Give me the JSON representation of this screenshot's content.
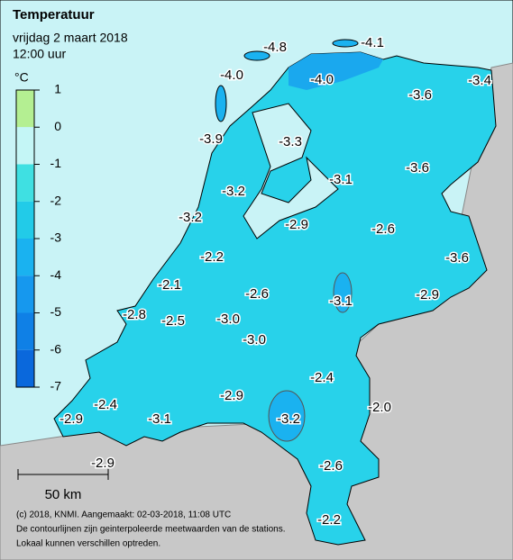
{
  "header": {
    "title": "Temperatuur",
    "date": "vrijdag 2 maart 2018",
    "time": "12:00 uur"
  },
  "legend": {
    "unit": "°C",
    "ticks": [
      1,
      0,
      -1,
      -2,
      -3,
      -4,
      -5,
      -6,
      -7
    ],
    "colors": [
      "#b4ef92",
      "#c4f6f6",
      "#3fe0e2",
      "#22cbe8",
      "#1ab2f0",
      "#1698ee",
      "#0f80e6",
      "#0a68dc"
    ]
  },
  "stations": [
    "-4.8",
    "-4.1",
    "-4.0",
    "-4.0",
    "-3.6",
    "-3.4",
    "-3.9",
    "-3.3",
    "-3.1",
    "-3.6",
    "-3.2",
    "-3.2",
    "-2.9",
    "-2.6",
    "-3.6",
    "-2.2",
    "-2.1",
    "-2.6",
    "-3.1",
    "-2.9",
    "-2.8",
    "-2.5",
    "-3.0",
    "-3.0",
    "-2.4",
    "-2.4",
    "-2.9",
    "-2.0",
    "-3.2",
    "-2.9",
    "-3.1",
    "-2.6",
    "-2.9",
    "-2.2"
  ],
  "scale": "50 km",
  "footer": [
    "(c) 2018, KNMI. Aangemaakt: 02-03-2018, 11:08 UTC",
    "De contourlijnen zijn geinterpoleerde meetwaarden van de stations.",
    "Lokaal kunnen verschillen optreden."
  ]
}
